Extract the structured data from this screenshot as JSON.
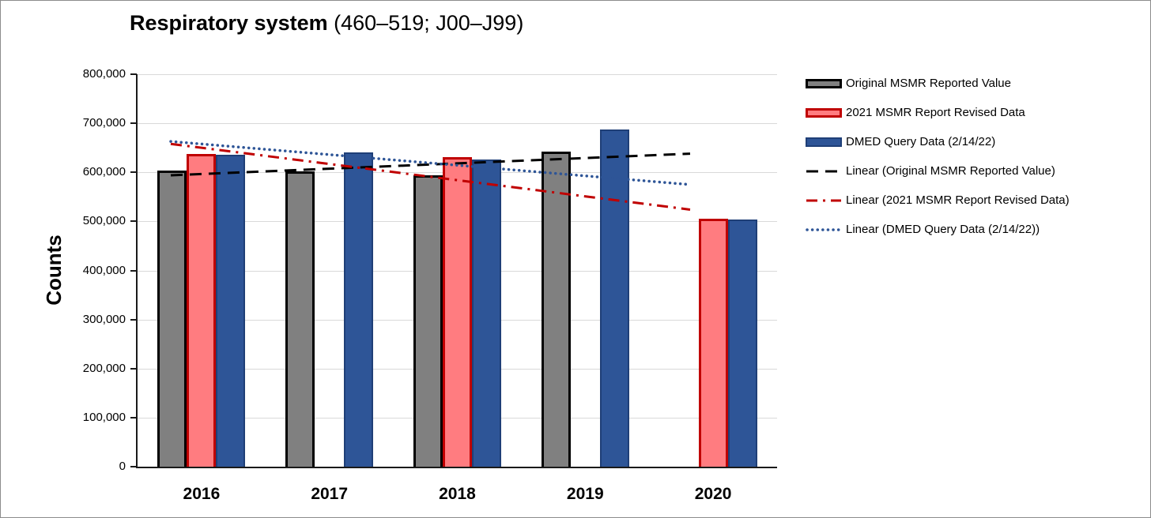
{
  "title": {
    "main": "Respiratory system",
    "sub": " (460–519; J00–J99)"
  },
  "y_axis": {
    "label": "Counts",
    "tick_labels": [
      "0",
      "100,000",
      "200,000",
      "300,000",
      "400,000",
      "500,000",
      "600,000",
      "700,000",
      "800,000"
    ]
  },
  "x_axis": {
    "categories": [
      "2016",
      "2017",
      "2018",
      "2019",
      "2020"
    ]
  },
  "legend": [
    {
      "label": "Original MSMR Reported Value",
      "swatch": "bar",
      "fill": "#808080",
      "stroke": "#000000",
      "stroke_w": 3
    },
    {
      "label": "2021 MSMR Report Revised Data",
      "swatch": "bar",
      "fill": "#FF7C80",
      "stroke": "#C00000",
      "stroke_w": 3
    },
    {
      "label": "DMED Query Data (2/14/22)",
      "swatch": "bar",
      "fill": "#2E5597",
      "stroke": "#1F3F77",
      "stroke_w": 2
    },
    {
      "label": "Linear (Original MSMR Reported Value)",
      "swatch": "line",
      "stroke": "#000000",
      "dash": "dashed"
    },
    {
      "label": "Linear (2021 MSMR Report Revised Data)",
      "swatch": "line",
      "stroke": "#C00000",
      "dash": "dashdot"
    },
    {
      "label": "Linear (DMED Query Data (2/14/22))",
      "swatch": "line",
      "stroke": "#2E5597",
      "dash": "dotted"
    }
  ],
  "chart_data": {
    "type": "bar",
    "title": "Respiratory system (460–519; J00–J99)",
    "ylabel": "Counts",
    "xlabel": "",
    "ylim": [
      0,
      800000
    ],
    "grid": "horizontal",
    "legend_position": "right",
    "categories": [
      "2016",
      "2017",
      "2018",
      "2019",
      "2020"
    ],
    "series": [
      {
        "name": "Original MSMR Reported Value",
        "fill": "#808080",
        "stroke": "#000000",
        "stroke_w": 3,
        "values": [
          604000,
          602000,
          594000,
          642000,
          null
        ]
      },
      {
        "name": "2021 MSMR Report Revised Data",
        "fill": "#FF7C80",
        "stroke": "#C00000",
        "stroke_w": 3,
        "values": [
          637000,
          null,
          631000,
          null,
          505000
        ]
      },
      {
        "name": "DMED Query Data (2/14/22)",
        "fill": "#2E5597",
        "stroke": "#1F3F77",
        "stroke_w": 2,
        "values": [
          636000,
          640000,
          626000,
          687000,
          504000
        ]
      }
    ],
    "trendlines": [
      {
        "name": "Linear (Original MSMR Reported Value)",
        "color": "#000000",
        "style": "dashed",
        "start_value": 594000,
        "end_value": 638000
      },
      {
        "name": "Linear (2021 MSMR Report Revised Data)",
        "color": "#C00000",
        "style": "dashdot",
        "start_value": 658000,
        "end_value": 524000
      },
      {
        "name": "Linear (DMED Query Data (2/14/22))",
        "color": "#2E5597",
        "style": "dotted",
        "start_value": 663000,
        "end_value": 575000
      }
    ]
  },
  "colors": {
    "gridline": "#D9D9D9",
    "axis": "#1A1A1A",
    "background": "#FFFFFF"
  }
}
